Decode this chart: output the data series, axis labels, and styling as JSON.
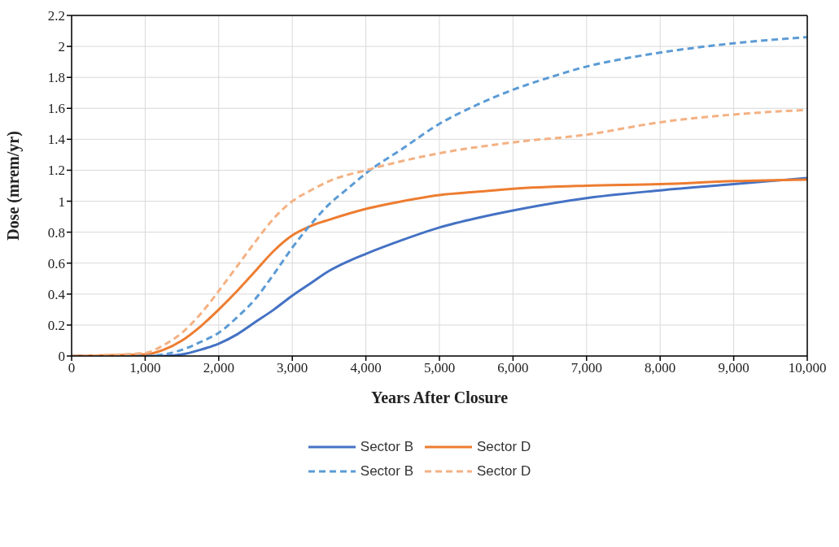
{
  "chart_data": {
    "type": "line",
    "xlabel": "Years After Closure",
    "ylabel": "Dose (mrem/yr)",
    "xlim": [
      0,
      10000
    ],
    "xticks": [
      0,
      {
        "value": 1000,
        "label": "1,000"
      },
      {
        "value": 2000,
        "label": "2,000"
      },
      {
        "value": 3000,
        "label": "3,000"
      },
      {
        "value": 4000,
        "label": "4,000"
      },
      {
        "value": 5000,
        "label": "5,000"
      },
      {
        "value": 6000,
        "label": "6,000"
      },
      {
        "value": 7000,
        "label": "7,000"
      },
      {
        "value": 8000,
        "label": "8,000"
      },
      {
        "value": 9000,
        "label": "9,000"
      },
      {
        "value": 10000,
        "label": "10,000"
      }
    ],
    "ylim": [
      0,
      2.2
    ],
    "yticks": [
      0,
      0.2,
      0.4,
      0.6,
      0.8,
      1,
      1.2,
      1.4,
      1.6,
      1.8,
      2,
      2.2
    ],
    "grid": true,
    "legend": "bottom",
    "marker": "none",
    "series": [
      {
        "name": "Sector B",
        "color": "#4472c4",
        "line_style": "solid",
        "x": [
          0,
          1000,
          1250,
          1500,
          1750,
          2000,
          2250,
          2500,
          2750,
          3000,
          3250,
          3500,
          3750,
          4000,
          4500,
          5000,
          5500,
          6000,
          7000,
          8000,
          9000,
          10000
        ],
        "values": [
          0,
          0,
          0,
          0.01,
          0.04,
          0.08,
          0.14,
          0.22,
          0.3,
          0.39,
          0.47,
          0.55,
          0.61,
          0.66,
          0.75,
          0.83,
          0.89,
          0.94,
          1.02,
          1.07,
          1.11,
          1.15
        ]
      },
      {
        "name": "Sector D",
        "color": "#ed7d31",
        "line_style": "solid",
        "x": [
          0,
          1000,
          1250,
          1500,
          1750,
          2000,
          2250,
          2500,
          2750,
          3000,
          3250,
          3500,
          4000,
          4500,
          5000,
          5500,
          6000,
          7000,
          8000,
          9000,
          10000
        ],
        "values": [
          0,
          0.01,
          0.04,
          0.1,
          0.19,
          0.3,
          0.42,
          0.55,
          0.68,
          0.78,
          0.84,
          0.88,
          0.95,
          1.0,
          1.04,
          1.06,
          1.08,
          1.1,
          1.11,
          1.13,
          1.14
        ]
      },
      {
        "name": "Sector B",
        "color": "#5b9bd5",
        "line_style": "dashed",
        "x": [
          0,
          1000,
          1250,
          1500,
          1750,
          2000,
          2250,
          2500,
          2750,
          3000,
          3250,
          3500,
          3750,
          4000,
          4500,
          5000,
          5500,
          6000,
          6500,
          7000,
          7500,
          8000,
          9000,
          10000
        ],
        "values": [
          0,
          0,
          0.01,
          0.04,
          0.09,
          0.15,
          0.25,
          0.37,
          0.53,
          0.7,
          0.85,
          0.98,
          1.08,
          1.18,
          1.34,
          1.5,
          1.62,
          1.72,
          1.8,
          1.87,
          1.92,
          1.96,
          2.02,
          2.06
        ]
      },
      {
        "name": "Sector D",
        "color": "#f4b183",
        "line_style": "dashed",
        "x": [
          0,
          1000,
          1250,
          1500,
          1750,
          2000,
          2250,
          2500,
          2750,
          3000,
          3250,
          3500,
          4000,
          4500,
          5000,
          6000,
          7000,
          8000,
          9000,
          10000
        ],
        "values": [
          0,
          0.02,
          0.07,
          0.15,
          0.27,
          0.42,
          0.58,
          0.74,
          0.89,
          1.0,
          1.07,
          1.13,
          1.2,
          1.26,
          1.31,
          1.38,
          1.43,
          1.51,
          1.56,
          1.59
        ]
      }
    ]
  }
}
